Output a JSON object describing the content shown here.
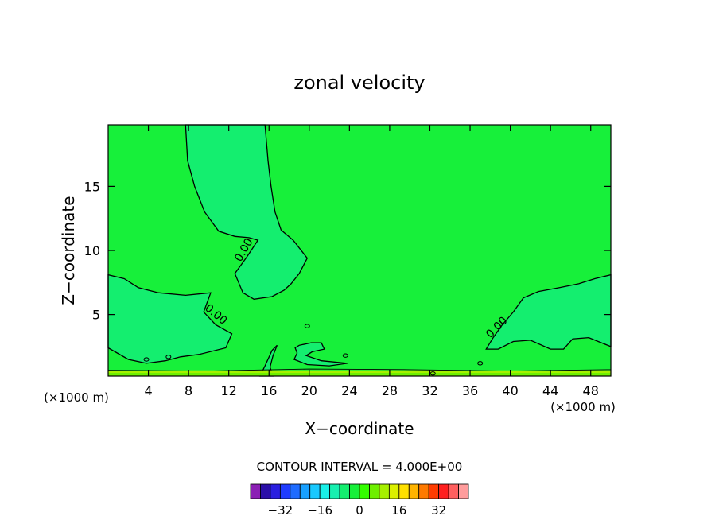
{
  "chart_data": {
    "type": "contour",
    "title": "zonal velocity",
    "xlabel": "X−coordinate",
    "ylabel": "Z−coordinate",
    "x_unit_left": "(×1000 m)",
    "x_unit_right": "(×1000 m)",
    "xlim": [
      0,
      50
    ],
    "ylim": [
      0.2,
      19.8
    ],
    "x_ticks": [
      4,
      8,
      12,
      16,
      20,
      24,
      28,
      32,
      36,
      40,
      44,
      48
    ],
    "x_tick_labels": [
      "4",
      "8",
      "12",
      "16",
      "20",
      "24",
      "28",
      "32",
      "36",
      "40",
      "44",
      "48"
    ],
    "y_ticks": [
      5,
      10,
      15
    ],
    "y_tick_labels": [
      "5",
      "10",
      "15"
    ],
    "contour_interval_text": "CONTOUR INTERVAL = 4.000E+00",
    "contour_labels": [
      {
        "text": "0.00",
        "x": 13.8,
        "y": 9.9
      },
      {
        "text": "0.00",
        "x": 10.5,
        "y": 4.8
      },
      {
        "text": "0.00",
        "x": 38.9,
        "y": 3.8
      }
    ],
    "colorbar": {
      "colors": [
        "#8b1fb4",
        "#2b0fa8",
        "#2a1fe0",
        "#1f3cff",
        "#1f6cff",
        "#17a0ff",
        "#19c9ff",
        "#19f0e8",
        "#17f0b0",
        "#14ee6f",
        "#17f03a",
        "#34ff00",
        "#6ef000",
        "#a6f000",
        "#dcf000",
        "#ffe000",
        "#ffb400",
        "#ff7a00",
        "#ff3c00",
        "#ff1f1f",
        "#ff5f5f",
        "#ff9c9c"
      ],
      "tick_values": [
        -32,
        -16,
        0,
        16,
        32
      ],
      "tick_labels": [
        "−32",
        "−16",
        "0",
        "16",
        "32"
      ],
      "vmin": -44,
      "vmax": 44
    },
    "field_colors": {
      "background": "#17f03a",
      "region_0_to_minus4": "#14ee6f",
      "surface_strip_high": "#6ef000",
      "surface_strip_mid": "#a6f000"
    },
    "grid": false
  }
}
